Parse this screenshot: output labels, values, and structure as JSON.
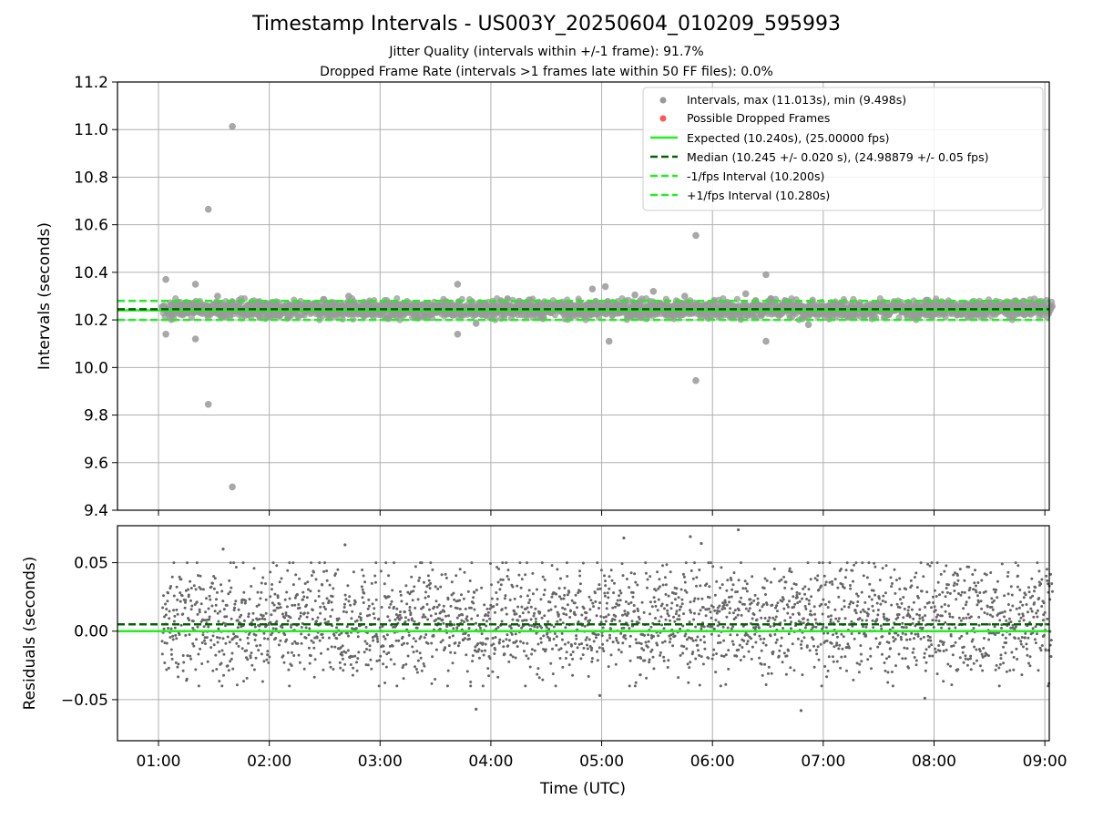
{
  "figure": {
    "title": "Timestamp Intervals - US003Y_20250604_010209_595993",
    "subtitle_1": "Jitter Quality (intervals within +/-1 frame): 91.7%",
    "subtitle_2": "Dropped Frame Rate (intervals >1 frames late within 50 FF files): 0.0%"
  },
  "colors": {
    "intervals": "#999999",
    "dropped": "#ff5555",
    "expected": "#22ee22",
    "median": "#006400",
    "fps_bounds": "#22ee22",
    "residuals": "#666666",
    "grid": "#b0b0b0"
  },
  "chart_data": [
    {
      "type": "scatter",
      "panel": "intervals",
      "ylabel": "Intervals (seconds)",
      "xlim_hours": [
        0.63,
        9.04
      ],
      "ylim": [
        9.4,
        11.2
      ],
      "y_ticks": [
        "11.2",
        "11.0",
        "10.8",
        "10.6",
        "10.4",
        "10.2",
        "10.0",
        "9.8",
        "9.6",
        "9.4"
      ],
      "grid": true,
      "legend_position": "top-right",
      "legend": [
        "Intervals, max (11.013s), min (9.498s)",
        "Possible Dropped Frames",
        "Expected (10.240s), (25.00000 fps)",
        "Median (10.245 +/- 0.020 s), (24.98879 +/- 0.05 fps)",
        "-1/fps Interval (10.200s)",
        "+1/fps Interval (10.280s)"
      ],
      "reference_lines": {
        "expected": 10.24,
        "median": 10.245,
        "minus_one_fps": 10.2,
        "plus_one_fps": 10.28
      },
      "series_summary": {
        "x_start": "01:02",
        "x_end": "09:04",
        "max_interval": 11.013,
        "min_interval": 9.498,
        "typical_band": [
          10.2,
          10.29
        ]
      },
      "outliers": [
        {
          "x": "01:04",
          "y": 10.37
        },
        {
          "x": "01:04",
          "y": 10.14
        },
        {
          "x": "01:20",
          "y": 10.35
        },
        {
          "x": "01:20",
          "y": 10.12
        },
        {
          "x": "01:27",
          "y": 10.665
        },
        {
          "x": "01:27",
          "y": 9.845
        },
        {
          "x": "01:40",
          "y": 11.013
        },
        {
          "x": "01:40",
          "y": 9.498
        },
        {
          "x": "01:32",
          "y": 10.3
        },
        {
          "x": "02:43",
          "y": 10.3
        },
        {
          "x": "03:42",
          "y": 10.35
        },
        {
          "x": "03:42",
          "y": 10.14
        },
        {
          "x": "03:52",
          "y": 10.185
        },
        {
          "x": "04:55",
          "y": 10.33
        },
        {
          "x": "05:02",
          "y": 10.34
        },
        {
          "x": "05:04",
          "y": 10.11
        },
        {
          "x": "05:18",
          "y": 10.305
        },
        {
          "x": "05:28",
          "y": 10.32
        },
        {
          "x": "05:51",
          "y": 10.555
        },
        {
          "x": "05:51",
          "y": 9.945
        },
        {
          "x": "05:45",
          "y": 10.3
        },
        {
          "x": "06:18",
          "y": 10.31
        },
        {
          "x": "06:29",
          "y": 10.39
        },
        {
          "x": "06:29",
          "y": 10.11
        },
        {
          "x": "06:52",
          "y": 10.18
        }
      ]
    },
    {
      "type": "scatter",
      "panel": "residuals",
      "xlabel": "Time (UTC)",
      "ylabel": "Residuals (seconds)",
      "xlim_hours": [
        0.63,
        9.04
      ],
      "ylim": [
        -0.08,
        0.077
      ],
      "x_ticks": [
        "01:00",
        "02:00",
        "03:00",
        "04:00",
        "05:00",
        "06:00",
        "07:00",
        "08:00",
        "09:00"
      ],
      "y_ticks": [
        "0.05",
        "0.00",
        "−0.05"
      ],
      "grid": true,
      "reference_lines": {
        "expected": 0.0,
        "median": 0.005
      },
      "series_summary": {
        "x_start": "01:02",
        "x_end": "09:04",
        "typical_band": [
          -0.04,
          0.05
        ]
      },
      "outliers": [
        {
          "x": "01:35",
          "y": 0.06
        },
        {
          "x": "02:41",
          "y": 0.063
        },
        {
          "x": "03:52",
          "y": -0.057
        },
        {
          "x": "04:59",
          "y": -0.047
        },
        {
          "x": "05:12",
          "y": 0.068
        },
        {
          "x": "05:48",
          "y": 0.069
        },
        {
          "x": "05:54",
          "y": 0.064
        },
        {
          "x": "06:14",
          "y": 0.074
        },
        {
          "x": "06:48",
          "y": -0.058
        },
        {
          "x": "07:55",
          "y": -0.049
        }
      ]
    }
  ]
}
